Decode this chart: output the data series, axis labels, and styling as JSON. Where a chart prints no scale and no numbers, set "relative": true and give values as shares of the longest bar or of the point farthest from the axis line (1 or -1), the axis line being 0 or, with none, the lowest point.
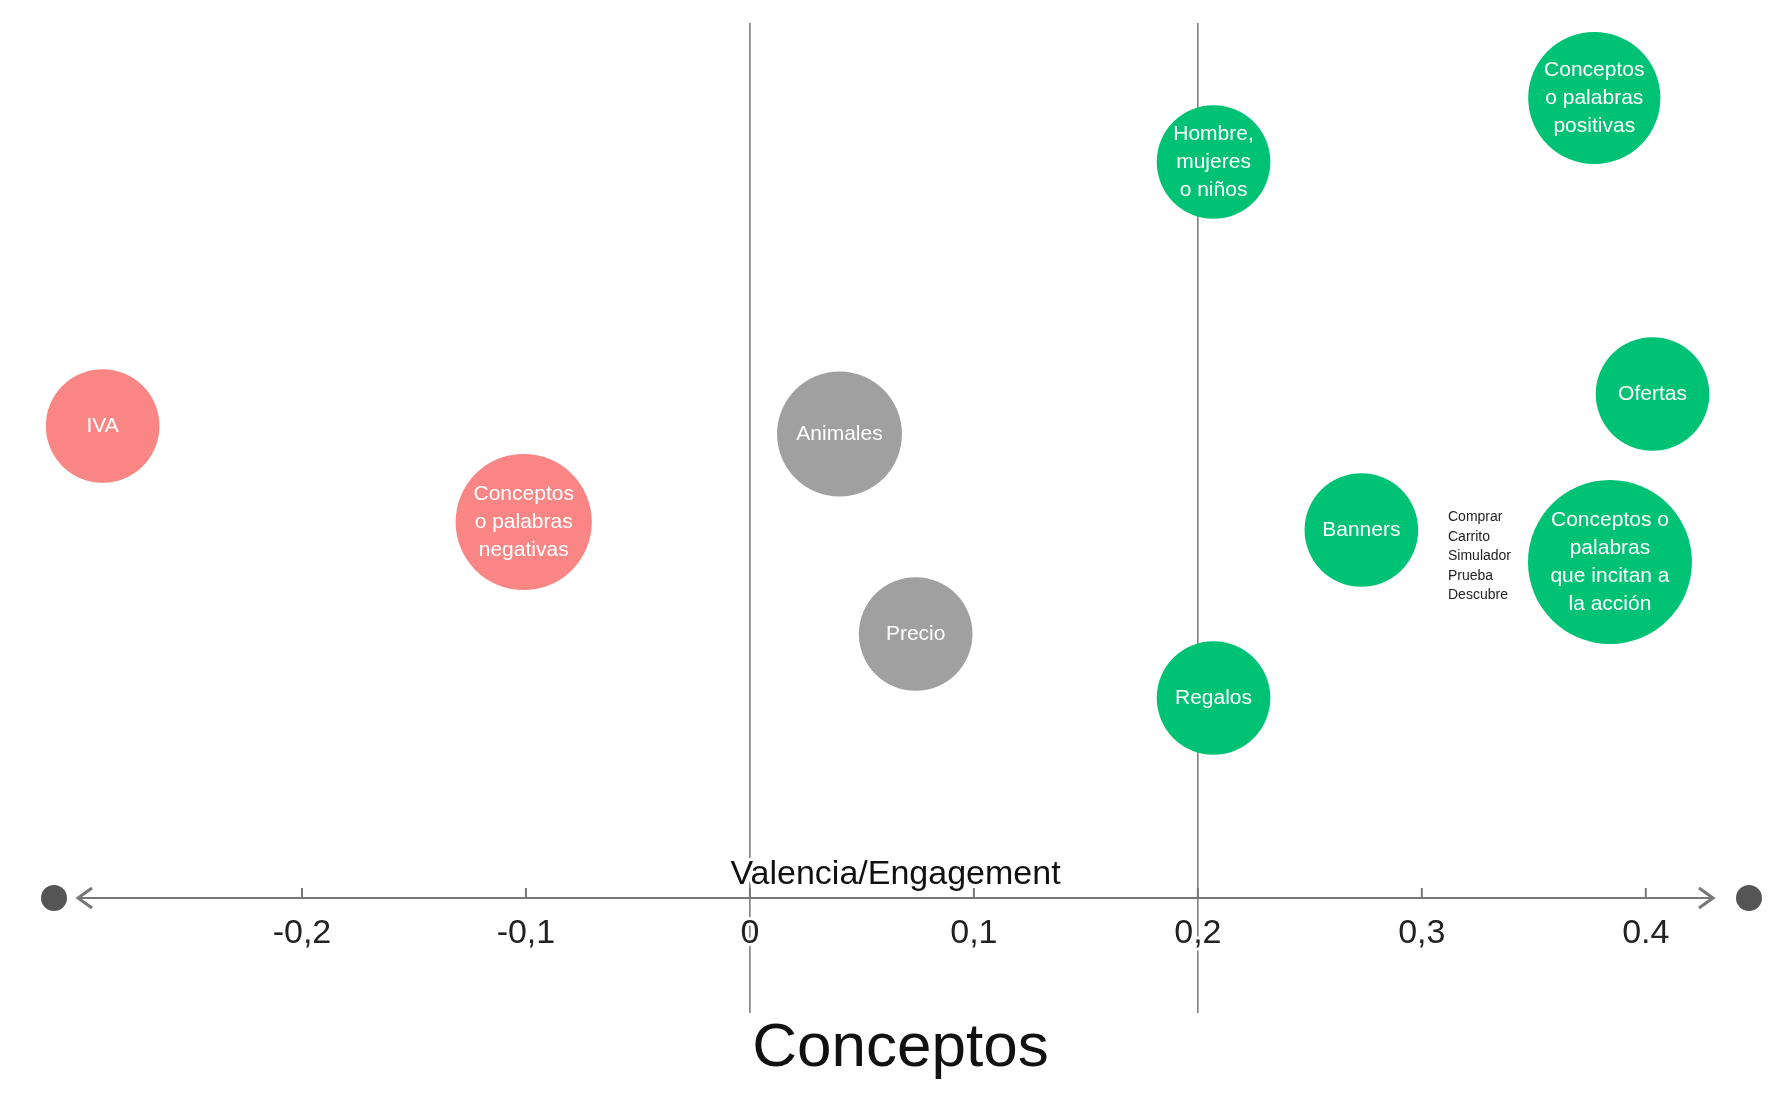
{
  "chart_data": {
    "type": "bubble",
    "title": "Conceptos",
    "xlabel": "Valencia/Engagement",
    "relative": true,
    "x": [
      -0.289,
      -0.101,
      0.04,
      0.074,
      0.207,
      0.207,
      0.273,
      0.384,
      0.403,
      0.377
    ],
    "values": [
      0.59,
      0.47,
      0.58,
      0.33,
      0.92,
      0.25,
      0.46,
      0.42,
      0.63,
      1
    ],
    "sizes": [
      0.48,
      0.69,
      0.58,
      0.48,
      0.48,
      0.48,
      0.48,
      1,
      0.48,
      0.65
    ],
    "colors": [
      "#f98585",
      "#f98585",
      "#a0a0a0",
      "#a0a0a0",
      "#00c274",
      "#00c274",
      "#00c274",
      "#00c274",
      "#00c274",
      "#00c274"
    ],
    "xlim": [
      -0.3,
      0.43
    ],
    "xticks": [
      {
        "value": -0.2,
        "label": "-0,2"
      },
      {
        "value": -0.1,
        "label": "-0,1"
      },
      0,
      {
        "value": 0.1,
        "label": "0,1"
      },
      {
        "value": 0.2,
        "label": "0,2"
      },
      {
        "value": 0.3,
        "label": "0,3"
      },
      0.4
    ],
    "ref_lines": [
      {
        "axis": "x",
        "value": 0
      },
      {
        "axis": "x",
        "value": 0.2
      }
    ],
    "annotations": [
      {
        "text": "IVA",
        "x": -0.289,
        "y": 0.59
      },
      {
        "text": "Conceptos\no palabras\nnegativas",
        "x": -0.101,
        "y": 0.47
      },
      {
        "text": "Animales",
        "x": 0.04,
        "y": 0.58
      },
      {
        "text": "Precio",
        "x": 0.074,
        "y": 0.33
      },
      {
        "text": "Hombre,\nmujeres\no niños",
        "x": 0.207,
        "y": 0.92
      },
      {
        "text": "Regalos",
        "x": 0.207,
        "y": 0.25
      },
      {
        "text": "Banners",
        "x": 0.273,
        "y": 0.46
      },
      {
        "text": "Conceptos o\npalabras\nque incitan a\nla acción",
        "x": 0.384,
        "y": 0.42
      },
      {
        "text": "Ofertas",
        "x": 0.403,
        "y": 0.63
      },
      {
        "text": "Conceptos\no palabras\npositivas",
        "x": 0.377,
        "y": 1
      },
      "Comprar\nCarrito\nSimulador\nPrueba\nDescubre"
    ]
  }
}
